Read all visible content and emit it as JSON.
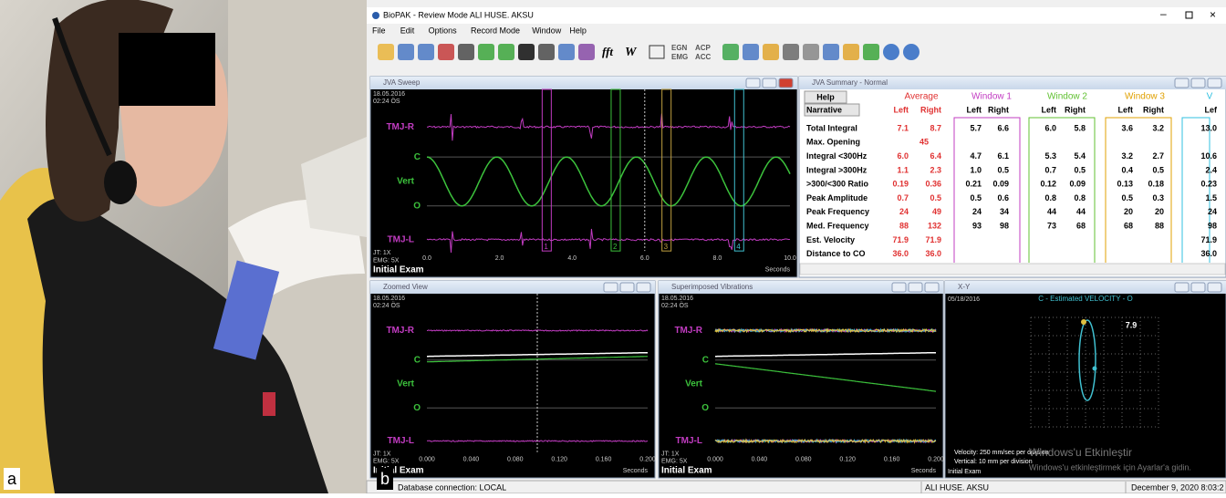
{
  "photo": {
    "label": "a"
  },
  "app": {
    "label": "b",
    "title": "BioPAK - Review Mode   ALI HUSE. AKSU",
    "menu": [
      "File",
      "Edit",
      "Options",
      "Record Mode",
      "Window",
      "Help"
    ],
    "toolbar_text": [
      "fft",
      "W",
      "EGN",
      "EMG",
      "ACP",
      "ACC"
    ]
  },
  "sweep": {
    "title": "JVA Sweep",
    "date": "18.05.2016",
    "time": "02:24 ÖS",
    "channels": [
      "TMJ-R",
      "Vert",
      "TMJ-L"
    ],
    "c": "C",
    "o": "O",
    "jt": "JT: 1X",
    "emg": "EMG: 5X",
    "exam": "Initial Exam",
    "xticks": [
      "0.0",
      "2.0",
      "4.0",
      "6.0",
      "8.0",
      "10.0"
    ],
    "unit": "Seconds",
    "markers": [
      "1",
      "2",
      "3",
      "4"
    ]
  },
  "summary": {
    "title": "JVA Summary - Normal",
    "help": "Help",
    "narrative": "Narrative",
    "groups": [
      "Average",
      "Window 1",
      "Window 2",
      "Window 3",
      "V"
    ],
    "left": "Left",
    "right": "Right",
    "left_cut": "Lef",
    "rows": [
      {
        "label": "Total Integral",
        "average": [
          "7.1",
          "8.7"
        ],
        "w1": [
          "5.7",
          "6.6"
        ],
        "w2": [
          "6.0",
          "5.8"
        ],
        "w3": [
          "3.6",
          "3.2"
        ],
        "w4": [
          "13.0"
        ]
      },
      {
        "label": "Max. Opening",
        "average": [
          "45"
        ]
      },
      {
        "label": "Integral <300Hz",
        "average": [
          "6.0",
          "6.4"
        ],
        "w1": [
          "4.7",
          "6.1"
        ],
        "w2": [
          "5.3",
          "5.4"
        ],
        "w3": [
          "3.2",
          "2.7"
        ],
        "w4": [
          "10.6"
        ]
      },
      {
        "label": "Integral >300Hz",
        "average": [
          "1.1",
          "2.3"
        ],
        "w1": [
          "1.0",
          "0.5"
        ],
        "w2": [
          "0.7",
          "0.5"
        ],
        "w3": [
          "0.4",
          "0.5"
        ],
        "w4": [
          "2.4"
        ]
      },
      {
        "label": ">300/<300 Ratio",
        "average": [
          "0.19",
          "0.36"
        ],
        "w1": [
          "0.21",
          "0.09"
        ],
        "w2": [
          "0.12",
          "0.09"
        ],
        "w3": [
          "0.13",
          "0.18"
        ],
        "w4": [
          "0.23"
        ]
      },
      {
        "label": "Peak Amplitude",
        "average": [
          "0.7",
          "0.5"
        ],
        "w1": [
          "0.5",
          "0.6"
        ],
        "w2": [
          "0.8",
          "0.8"
        ],
        "w3": [
          "0.5",
          "0.3"
        ],
        "w4": [
          "1.5"
        ]
      },
      {
        "label": "Peak Frequency",
        "average": [
          "24",
          "49"
        ],
        "w1": [
          "24",
          "34"
        ],
        "w2": [
          "44",
          "44"
        ],
        "w3": [
          "20",
          "20"
        ],
        "w4": [
          "24"
        ]
      },
      {
        "label": "Med. Frequency",
        "average": [
          "88",
          "132"
        ],
        "w1": [
          "93",
          "98"
        ],
        "w2": [
          "73",
          "68"
        ],
        "w3": [
          "68",
          "88"
        ],
        "w4": [
          "98"
        ]
      },
      {
        "label": "Est. Velocity",
        "average": [
          "71.9",
          "71.9"
        ],
        "w4": [
          "71.9"
        ]
      },
      {
        "label": "Distance to CO",
        "average": [
          "36.0",
          "36.0"
        ],
        "w4": [
          "36.0"
        ]
      }
    ]
  },
  "zoom": {
    "title": "Zoomed View",
    "date": "18.05.2016",
    "time": "02:24 ÖS",
    "channels": [
      "TMJ-R",
      "Vert",
      "TMJ-L"
    ],
    "c": "C",
    "o": "O",
    "jt": "JT: 1X",
    "emg": "EMG: 5X",
    "exam": "Initial Exam",
    "xticks": [
      "0.000",
      "0.040",
      "0.080",
      "0.120",
      "0.160",
      "0.200"
    ],
    "unit": "Seconds"
  },
  "superimposed": {
    "title": "Superimposed Vibrations",
    "date": "18.05.2016",
    "time": "02:24 ÖS",
    "channels": [
      "TMJ-R",
      "Vert",
      "TMJ-L"
    ],
    "c": "C",
    "o": "O",
    "jt": "JT: 1X",
    "emg": "EMG: 5X",
    "exam": "Initial Exam",
    "xticks": [
      "0.000",
      "0.040",
      "0.080",
      "0.120",
      "0.160",
      "0.200"
    ],
    "unit": "Seconds"
  },
  "xy": {
    "title": "X-Y",
    "date": "05/18/2016",
    "heading": "C - Estimated VELOCITY - O",
    "value": "7.9",
    "velocity": "Velocity: 250 mm/sec per division",
    "vertical": "Vertical: 10 mm per division",
    "exam": "Initial Exam",
    "watermark": [
      "Windows'u Etkinleştir",
      "Windows'u etkinleştirmek için Ayarlar'a gidin."
    ]
  },
  "status": [
    "Database connection: LOCAL",
    "ALI HUSE. AKSU",
    "December 9, 2020 8:03:2"
  ]
}
